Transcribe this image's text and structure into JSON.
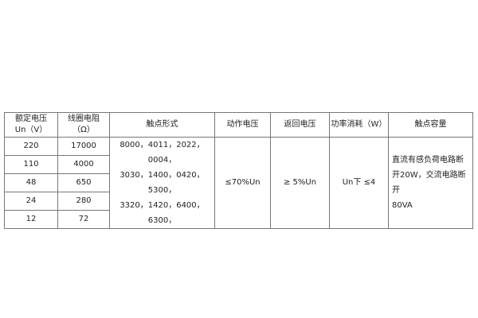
{
  "headers": [
    "额定电压",
    "Un（V）",
    "线圈电阻",
    "（Ω）",
    "触点形式",
    "动作电压",
    "返回电压",
    "功率消耗（W）",
    "触点容量"
  ],
  "rows": [
    {
      "voltage": "220",
      "resistance": "17000"
    },
    {
      "voltage": "110",
      "resistance": "4000"
    },
    {
      "voltage": "48",
      "resistance": "650"
    },
    {
      "voltage": "24",
      "resistance": "280"
    },
    {
      "voltage": "12",
      "resistance": "72"
    }
  ],
  "contact_forms": [
    "8000，4011，2022，0004，",
    "3030，1400，0420，5300，",
    "3320，1420，6400，6300，"
  ],
  "operate_voltage": "≤70%Un",
  "release_voltage": "≥ 5%Un",
  "power": "Un下 ≤4",
  "contact_capacity": [
    "直流有感负荷电路断",
    "开20W，交流电路断开",
    "80VA"
  ]
}
